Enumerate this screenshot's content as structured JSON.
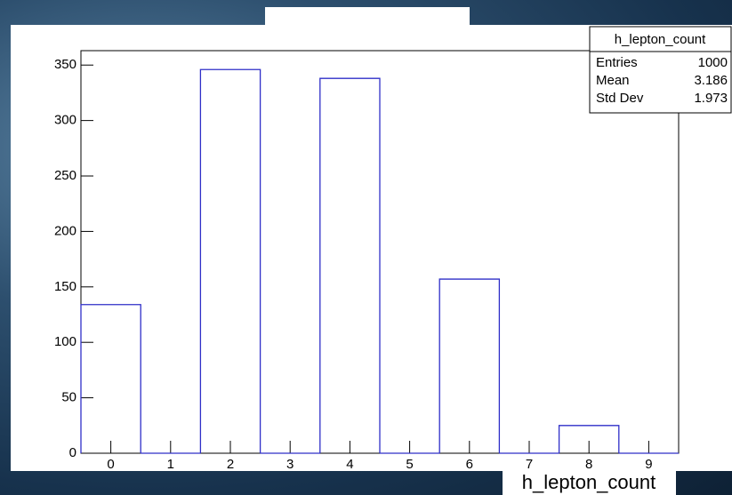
{
  "chart_data": {
    "type": "histogram",
    "bins": [
      -0.5,
      0.5,
      1.5,
      2.5,
      3.5,
      4.5,
      5.5,
      6.5,
      7.5,
      8.5,
      9.5
    ],
    "values": [
      134,
      0,
      346,
      0,
      338,
      0,
      157,
      0,
      25,
      0
    ],
    "color": "#2f2fc8",
    "xlabel": "h_lepton_count",
    "xlim": [
      -0.5,
      9.5
    ],
    "xticks": [
      0,
      1,
      2,
      3,
      4,
      5,
      6,
      7,
      8,
      9
    ],
    "ylim": [
      0,
      363
    ],
    "yticks": [
      0,
      50,
      100,
      150,
      200,
      250,
      300,
      350
    ],
    "stats": {
      "title": "h_lepton_count",
      "rows": [
        {
          "label": "Entries",
          "value": 1000
        },
        {
          "label": "Mean",
          "value": 3.186
        },
        {
          "label": "Std Dev",
          "value": 1.973
        }
      ]
    }
  }
}
